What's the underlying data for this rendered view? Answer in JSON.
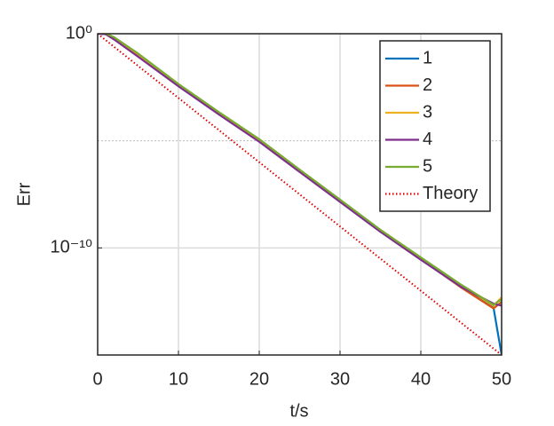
{
  "chart_data": {
    "type": "line",
    "xlabel": "t/s",
    "ylabel": "Err",
    "x": [
      0,
      1,
      2,
      5,
      10,
      15,
      20,
      25,
      30,
      35,
      40,
      45,
      49,
      50
    ],
    "series": [
      {
        "name": "1",
        "color": "#0072BD",
        "style": "solid",
        "values": [
          1.07,
          1.05,
          0.63,
          0.1,
          0.004,
          0.0002,
          1e-05,
          4e-07,
          1.6e-08,
          6.3e-10,
          3.2e-11,
          1.6e-12,
          1.6e-13,
          1e-15
        ]
      },
      {
        "name": "2",
        "color": "#D95319",
        "style": "solid",
        "values": [
          1.05,
          1.0,
          0.6,
          0.09,
          0.0038,
          0.00019,
          9.5e-06,
          3.8e-07,
          1.5e-08,
          6e-10,
          3e-11,
          1.4e-12,
          1.5e-13,
          3e-13
        ]
      },
      {
        "name": "3",
        "color": "#EDB120",
        "style": "solid",
        "values": [
          1.03,
          1.02,
          0.66,
          0.11,
          0.0042,
          0.00021,
          1.1e-05,
          4.2e-07,
          1.7e-08,
          6.6e-10,
          3.4e-11,
          1.8e-12,
          2e-13,
          5e-13
        ]
      },
      {
        "name": "4",
        "color": "#7E2F8E",
        "style": "solid",
        "values": [
          1.0,
          0.95,
          0.55,
          0.085,
          0.0035,
          0.00017,
          9e-06,
          3.5e-07,
          1.4e-08,
          5.6e-10,
          2.8e-11,
          1.5e-12,
          2.5e-13,
          2e-13
        ]
      },
      {
        "name": "5",
        "color": "#77AC30",
        "style": "solid",
        "values": [
          1.06,
          1.04,
          0.7,
          0.12,
          0.0045,
          0.00022,
          1.2e-05,
          4.5e-07,
          1.8e-08,
          7e-10,
          3.6e-11,
          1.9e-12,
          2.2e-13,
          4e-13
        ]
      },
      {
        "name": "Theory",
        "color": "#E00000",
        "style": "dotted",
        "values": [
          1,
          0.5,
          0.25,
          0.0316,
          0.001,
          3.16e-05,
          1e-06,
          3.16e-08,
          1e-09,
          3.16e-11,
          1e-12,
          3.16e-14,
          2e-15,
          1e-15
        ]
      }
    ],
    "xlim": [
      0,
      50
    ],
    "xticks": [
      0,
      10,
      20,
      30,
      40,
      50
    ],
    "ylim": [
      1e-15,
      1
    ],
    "yscale": "log",
    "yticks": [
      {
        "value": 1e-10,
        "label": "10⁻¹⁰"
      },
      {
        "value": 1,
        "label": "10⁰"
      }
    ],
    "y_minor_grid": [
      1e-05
    ],
    "grid": true,
    "legend": "northeast"
  }
}
